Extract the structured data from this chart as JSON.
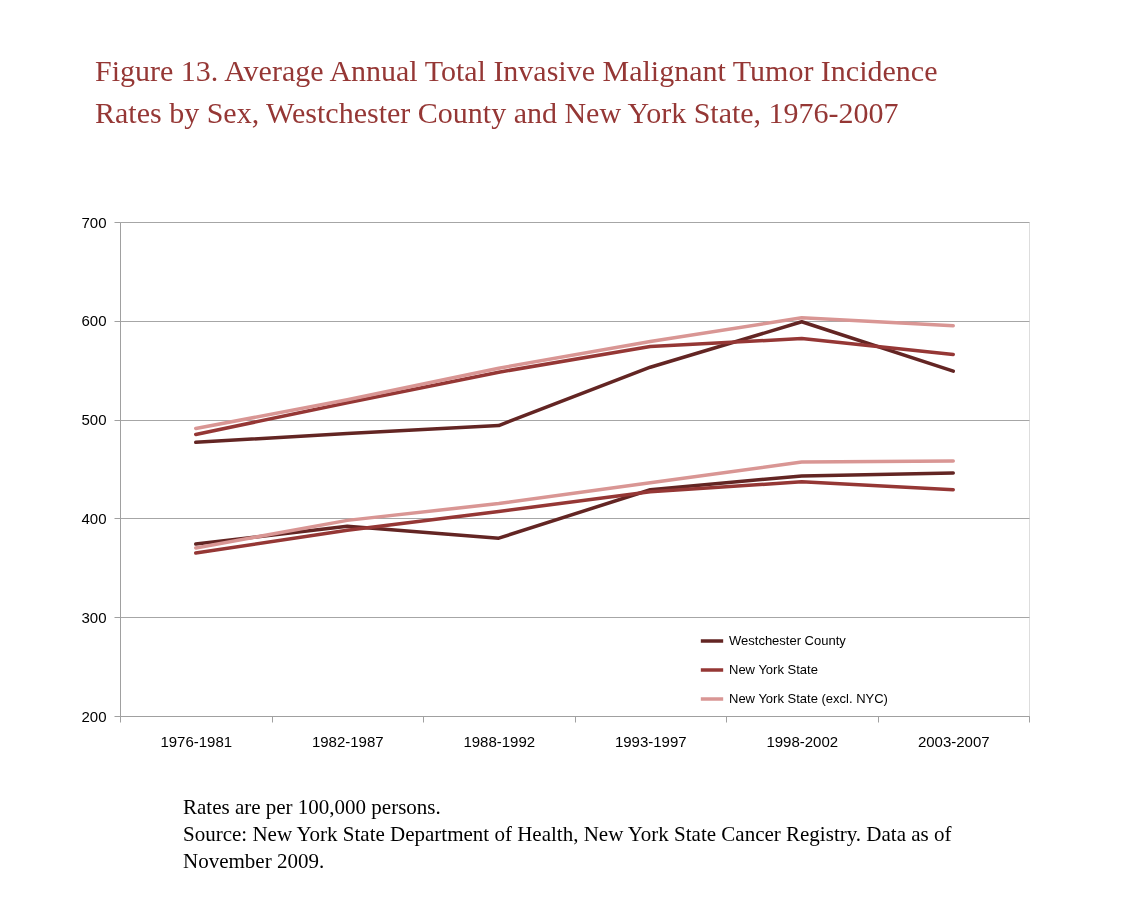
{
  "chart_data": {
    "type": "line",
    "title": "Figure  13.  Average Annual Total Invasive Malignant Tumor Incidence Rates by Sex, Westchester County and New York State, 1976-2007",
    "categories": [
      "1976-1981",
      "1982-1987",
      "1988-1992",
      "1993-1997",
      "1998-2002",
      "2003-2007"
    ],
    "series": [
      {
        "name": "Westchester County",
        "color": "#632523",
        "values": [
          477,
          486,
          494,
          553,
          599,
          549
        ]
      },
      {
        "name": "New York State",
        "color": "#953735",
        "values": [
          485,
          517,
          548,
          574,
          582,
          566
        ]
      },
      {
        "name": "New York State  (excl. NYC)",
        "color": "#d99694",
        "values": [
          491,
          520,
          552,
          579,
          603,
          595
        ]
      },
      {
        "color": "#632523",
        "values": [
          374,
          392,
          380,
          429,
          443,
          446
        ]
      },
      {
        "color": "#953735",
        "values": [
          365,
          388,
          407,
          427,
          437,
          429
        ]
      },
      {
        "color": "#d99694",
        "values": [
          370,
          398,
          415,
          436,
          457,
          458
        ]
      }
    ],
    "ylim": [
      200,
      700
    ],
    "yticks": [
      200,
      300,
      400,
      500,
      600,
      700
    ],
    "grid": "y",
    "legend": "bottom right",
    "line_style": "solid",
    "annotations": [
      "Rates are per 100,000 persons.",
      "Source:  New York State Department of Health, New York State Cancer Registry.  Data as of November 2009."
    ]
  }
}
